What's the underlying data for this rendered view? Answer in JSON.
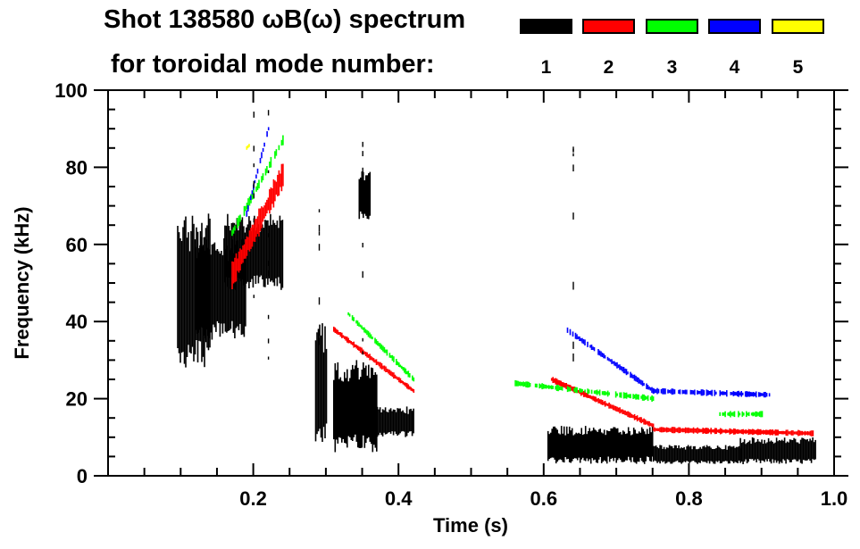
{
  "header": {
    "title_line1": "Shot 138580 ωB(ω) spectrum",
    "title_line2": "for toroidal mode number:"
  },
  "legend": [
    {
      "label": "1",
      "color": "#000000"
    },
    {
      "label": "2",
      "color": "#ff0000"
    },
    {
      "label": "3",
      "color": "#00ff00"
    },
    {
      "label": "4",
      "color": "#0000ff"
    },
    {
      "label": "5",
      "color": "#ffff00"
    }
  ],
  "chart_data": {
    "type": "heatmap",
    "title": "Shot 138580 ωB(ω) spectrum for toroidal mode number:",
    "xlabel": "Time (s)",
    "ylabel": "Frequency (kHz)",
    "xlim": [
      0.0,
      1.0
    ],
    "ylim": [
      0,
      100
    ],
    "x_ticks": [
      0.2,
      0.4,
      0.6,
      0.8,
      1.0
    ],
    "x_tick_labels": [
      "0.2",
      "0.4",
      "0.6",
      "0.8",
      "1.0"
    ],
    "y_ticks": [
      0,
      20,
      40,
      60,
      80,
      100
    ],
    "y_tick_labels": [
      "0",
      "20",
      "40",
      "60",
      "80",
      "100"
    ],
    "x_minor_step": 0.05,
    "y_minor_step": 5,
    "grid": false,
    "legend_position": "top-right",
    "series": [
      {
        "name": "n=1",
        "color": "#000000",
        "regions": [
          {
            "t": [
              0.095,
              0.14
            ],
            "f": [
              28,
              68
            ]
          },
          {
            "t": [
              0.12,
              0.19
            ],
            "f": [
              35,
              62
            ]
          },
          {
            "t": [
              0.16,
              0.24
            ],
            "f": [
              48,
              68
            ]
          },
          {
            "t": [
              0.285,
              0.3
            ],
            "f": [
              8,
              40
            ]
          },
          {
            "t": [
              0.31,
              0.37
            ],
            "f": [
              6,
              30
            ]
          },
          {
            "t": [
              0.37,
              0.42
            ],
            "f": [
              10,
              18
            ]
          },
          {
            "t": [
              0.345,
              0.36
            ],
            "f": [
              66,
              80
            ]
          },
          {
            "t": [
              0.605,
              0.75
            ],
            "f": [
              3,
              13
            ]
          },
          {
            "t": [
              0.75,
              0.87
            ],
            "f": [
              3,
              8
            ]
          },
          {
            "t": [
              0.87,
              0.975
            ],
            "f": [
              3,
              10
            ]
          }
        ]
      },
      {
        "name": "n=2",
        "color": "#ff0000",
        "tracks": [
          {
            "t": [
              0.17,
              0.24
            ],
            "f": [
              52,
              78
            ]
          },
          {
            "t": [
              0.31,
              0.42
            ],
            "f": [
              38,
              22
            ]
          },
          {
            "t": [
              0.61,
              0.75
            ],
            "f": [
              25,
              13
            ]
          },
          {
            "t": [
              0.75,
              0.97
            ],
            "f": [
              12,
              11
            ]
          }
        ]
      },
      {
        "name": "n=3",
        "color": "#00ff00",
        "tracks": [
          {
            "t": [
              0.17,
              0.24
            ],
            "f": [
              63,
              87
            ]
          },
          {
            "t": [
              0.33,
              0.42
            ],
            "f": [
              42,
              25
            ]
          },
          {
            "t": [
              0.56,
              0.75
            ],
            "f": [
              24,
              20
            ]
          },
          {
            "t": [
              0.84,
              0.9
            ],
            "f": [
              16,
              16
            ]
          }
        ]
      },
      {
        "name": "n=4",
        "color": "#0000ff",
        "tracks": [
          {
            "t": [
              0.19,
              0.22
            ],
            "f": [
              68,
              90
            ]
          },
          {
            "t": [
              0.63,
              0.75
            ],
            "f": [
              38,
              22
            ]
          },
          {
            "t": [
              0.75,
              0.91
            ],
            "f": [
              22,
              21
            ]
          }
        ]
      },
      {
        "name": "n=5",
        "color": "#ffff00",
        "tracks": [
          {
            "t": [
              0.19,
              0.195
            ],
            "f": [
              85,
              86
            ]
          }
        ]
      }
    ]
  }
}
